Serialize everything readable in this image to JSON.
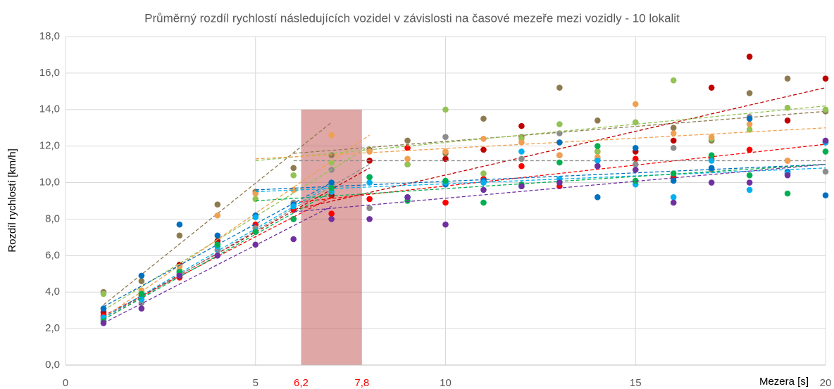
{
  "chart_data": {
    "type": "scatter",
    "title": "Průměrný rozdíl rychlostí následujících vozidel v závislosti na časové mezeře mezi vozidly - 10 lokalit",
    "x_label": "Mezera [s]",
    "y_label": "Rozdíl rychlostí [km/h]",
    "xlim": [
      0,
      20
    ],
    "ylim": [
      0,
      18
    ],
    "xticks": [
      0,
      5,
      10,
      15,
      20
    ],
    "yticks": [
      {
        "value": 0,
        "label": "0,0"
      },
      {
        "value": 2,
        "label": "2,0"
      },
      {
        "value": 4,
        "label": "4,0"
      },
      {
        "value": 6,
        "label": "6,0"
      },
      {
        "value": 8,
        "label": "8,0"
      },
      {
        "value": 10,
        "label": "10,0"
      },
      {
        "value": 12,
        "label": "12,0"
      },
      {
        "value": 14,
        "label": "14,0"
      },
      {
        "value": 16,
        "label": "16,0"
      },
      {
        "value": 18,
        "label": "18,0"
      }
    ],
    "grid": true,
    "highlight": {
      "from": {
        "value": 6.2,
        "label": "6,2"
      },
      "to": {
        "value": 7.8,
        "label": "7,8"
      },
      "top": 14,
      "color": "#c0504d"
    },
    "x": [
      1,
      2,
      3,
      4,
      5,
      6,
      7,
      8,
      9,
      10,
      11,
      12,
      13,
      14,
      15,
      16,
      17,
      18,
      19,
      20
    ],
    "series": [
      {
        "color": "#c00000",
        "values": [
          2.9,
          3.8,
          5.5,
          6.8,
          7.3,
          8.0,
          9.3,
          11.2,
          11.9,
          11.3,
          11.8,
          13.1,
          11.5,
          11.7,
          11.7,
          12.3,
          15.2,
          16.9,
          13.4,
          15.7
        ],
        "trend": [
          {
            "x": [
              1,
              8
            ],
            "y": [
              2.6,
              10.8
            ]
          },
          {
            "x": [
              6,
              20
            ],
            "y": [
              8.5,
              15.2
            ]
          }
        ]
      },
      {
        "color": "#ff0000",
        "values": [
          2.7,
          3.7,
          4.8,
          6.6,
          7.7,
          8.5,
          8.3,
          9.1,
          11.9,
          8.9,
          10.2,
          10.9,
          9.8,
          10.9,
          11.3,
          10.3,
          11.3,
          11.8,
          11.2,
          12.2
        ],
        "trend": [
          {
            "x": [
              1,
              7
            ],
            "y": [
              2.7,
              9.2
            ]
          },
          {
            "x": [
              6,
              20
            ],
            "y": [
              8.9,
              12.1
            ]
          }
        ]
      },
      {
        "color": "#8e7a4f",
        "values": [
          4.0,
          4.6,
          7.1,
          8.8,
          9.5,
          10.8,
          11.5,
          11.8,
          12.3,
          11.6,
          13.5,
          12.5,
          15.2,
          13.4,
          13.3,
          13.0,
          12.3,
          14.9,
          15.7,
          13.9
        ],
        "trend": [
          {
            "x": [
              1,
              7
            ],
            "y": [
              3.3,
              13.3
            ]
          },
          {
            "x": [
              6,
              20
            ],
            "y": [
              11.6,
              13.9
            ]
          }
        ]
      },
      {
        "color": "#8c8c8c",
        "values": [
          2.5,
          3.4,
          5.0,
          6.3,
          7.5,
          8.9,
          10.7,
          8.6,
          11.0,
          12.5,
          10.1,
          11.3,
          12.7,
          11.3,
          11.0,
          11.9,
          10.7,
          13.6,
          10.5,
          10.6
        ],
        "trend": [
          {
            "x": [
              1,
              8
            ],
            "y": [
              2.5,
              11.0
            ]
          },
          {
            "x": [
              6,
              20
            ],
            "y": [
              11.2,
              11.2
            ]
          }
        ]
      },
      {
        "color": "#92c353",
        "values": [
          3.9,
          4.0,
          5.2,
          6.5,
          9.1,
          10.4,
          11.1,
          11.7,
          11.0,
          14.0,
          10.5,
          12.4,
          13.2,
          11.7,
          13.3,
          15.6,
          12.4,
          12.9,
          14.1,
          14.0
        ],
        "trend": [
          {
            "x": [
              1,
              8
            ],
            "y": [
              3.0,
              12.0
            ]
          },
          {
            "x": [
              5,
              20
            ],
            "y": [
              11.2,
              14.2
            ]
          }
        ]
      },
      {
        "color": "#f0a050",
        "values": [
          2.6,
          4.1,
          5.4,
          8.2,
          9.4,
          9.6,
          12.6,
          11.7,
          11.3,
          11.7,
          12.4,
          12.2,
          11.5,
          11.4,
          14.3,
          12.7,
          12.5,
          13.2,
          11.2,
          12.2
        ],
        "trend": [
          {
            "x": [
              1,
              8
            ],
            "y": [
              2.6,
              12.6
            ]
          },
          {
            "x": [
              5,
              20
            ],
            "y": [
              11.3,
              13.0
            ]
          }
        ]
      },
      {
        "color": "#0070c0",
        "values": [
          3.1,
          4.9,
          7.7,
          7.1,
          8.2,
          8.8,
          10.0,
          10.3,
          9.2,
          9.9,
          10.1,
          9.8,
          12.2,
          9.2,
          11.9,
          10.1,
          10.8,
          13.5,
          10.6,
          9.3
        ],
        "trend": [
          {
            "x": [
              1,
              7
            ],
            "y": [
              3.2,
              10.0
            ]
          },
          {
            "x": [
              5,
              20
            ],
            "y": [
              9.6,
              11.0
            ]
          }
        ]
      },
      {
        "color": "#00b0f0",
        "values": [
          2.6,
          3.6,
          5.1,
          6.5,
          8.1,
          8.7,
          9.5,
          10.0,
          9.2,
          10.0,
          10.0,
          11.7,
          10.2,
          11.2,
          9.9,
          9.2,
          11.2,
          9.6,
          10.5,
          12.2
        ],
        "trend": [
          {
            "x": [
              1,
              7
            ],
            "y": [
              2.6,
              9.9
            ]
          },
          {
            "x": [
              5,
              20
            ],
            "y": [
              9.5,
              10.8
            ]
          }
        ]
      },
      {
        "color": "#00b050",
        "values": [
          2.4,
          3.9,
          5.1,
          6.6,
          7.3,
          8.0,
          9.7,
          10.3,
          9.0,
          10.1,
          8.9,
          9.9,
          11.1,
          12.0,
          10.1,
          10.5,
          11.5,
          10.4,
          9.4,
          11.7
        ],
        "trend": [
          {
            "x": [
              1,
              7
            ],
            "y": [
              2.5,
              9.5
            ]
          },
          {
            "x": [
              5,
              20
            ],
            "y": [
              9.0,
              11.0
            ]
          }
        ]
      },
      {
        "color": "#7030a0",
        "values": [
          2.3,
          3.1,
          4.9,
          6.0,
          6.6,
          6.9,
          8.0,
          8.0,
          9.2,
          7.7,
          9.6,
          9.8,
          10.0,
          10.9,
          10.7,
          8.9,
          10.0,
          10.0,
          10.4,
          12.3
        ],
        "trend": [
          {
            "x": [
              1,
              7
            ],
            "y": [
              2.3,
              8.7
            ]
          },
          {
            "x": [
              6,
              20
            ],
            "y": [
              8.4,
              11.0
            ]
          }
        ]
      }
    ]
  }
}
